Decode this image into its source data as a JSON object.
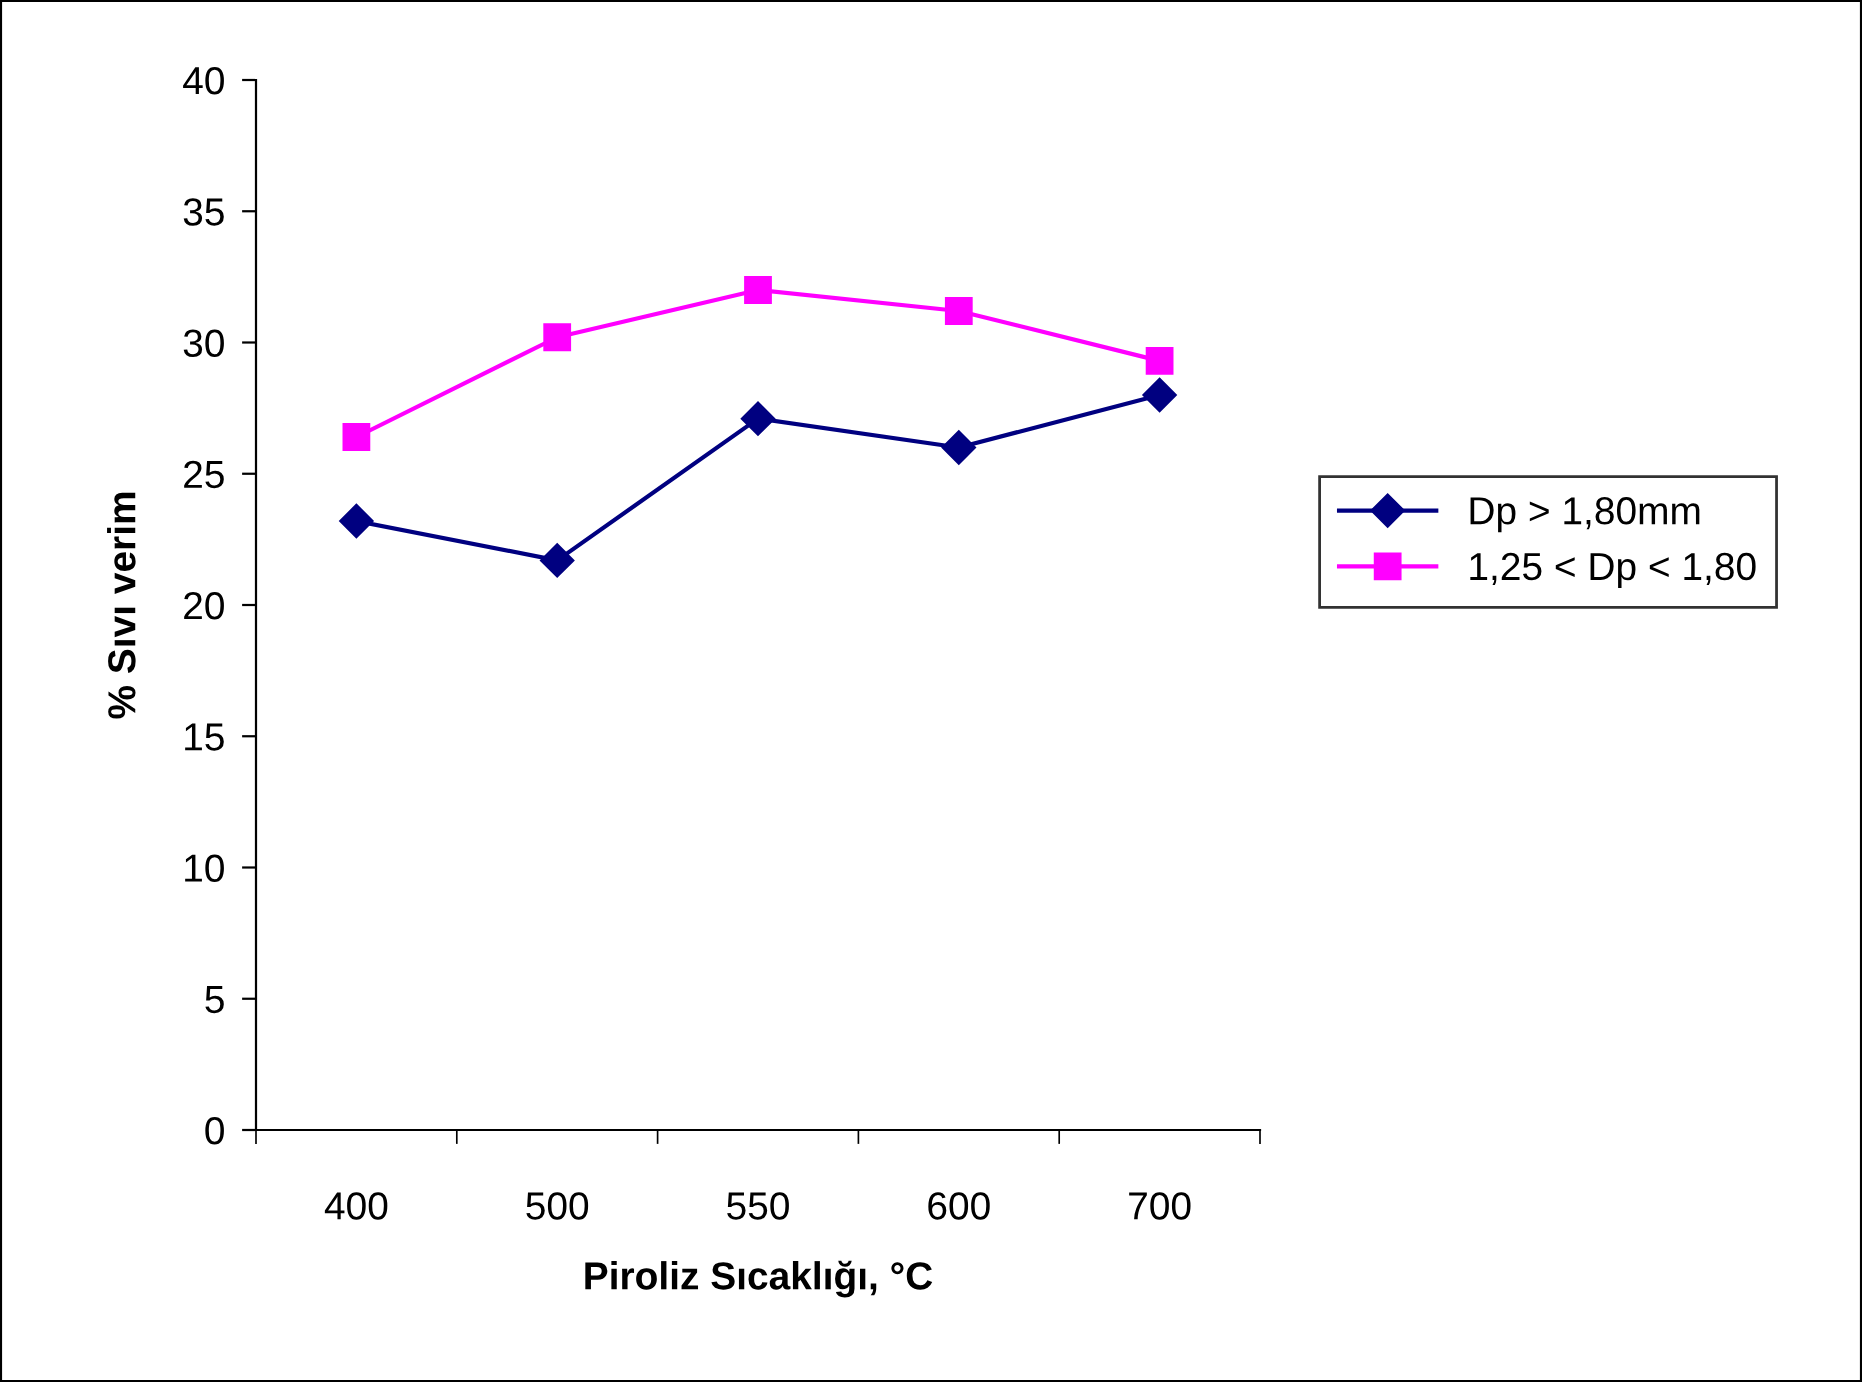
{
  "chart_data": {
    "type": "line",
    "xlabel": "Piroliz Sıcaklığı, °C",
    "ylabel": "% Sıvı verim",
    "categories": [
      "400",
      "500",
      "550",
      "600",
      "700"
    ],
    "series": [
      {
        "name": "Dp > 1,80mm",
        "color": "#000080",
        "marker": "diamond",
        "values": [
          23.2,
          21.7,
          27.1,
          26.0,
          28.0
        ]
      },
      {
        "name": "1,25 < Dp < 1,80",
        "color": "#ff00ff",
        "marker": "square",
        "values": [
          26.4,
          30.2,
          32.0,
          31.2,
          29.3
        ]
      }
    ],
    "ylim": [
      0,
      40
    ],
    "yticks": [
      0,
      5,
      10,
      15,
      20,
      25,
      30,
      35,
      40
    ],
    "grid": false,
    "legend": "right",
    "line_style": "solid"
  }
}
